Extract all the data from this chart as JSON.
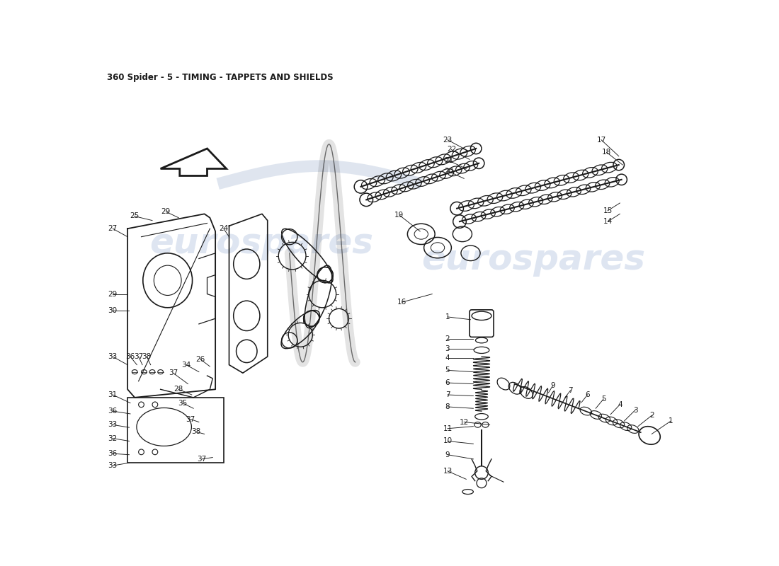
{
  "title": "360 Spider - 5 - TIMING - TAPPETS AND SHIELDS",
  "title_fontsize": 8.5,
  "background_color": "#ffffff",
  "line_color": "#1a1a1a",
  "part_label_fontsize": 7.5,
  "watermark_text": "eurospares",
  "watermark_color": "#c8d4e8",
  "watermark_fontsize": 36
}
